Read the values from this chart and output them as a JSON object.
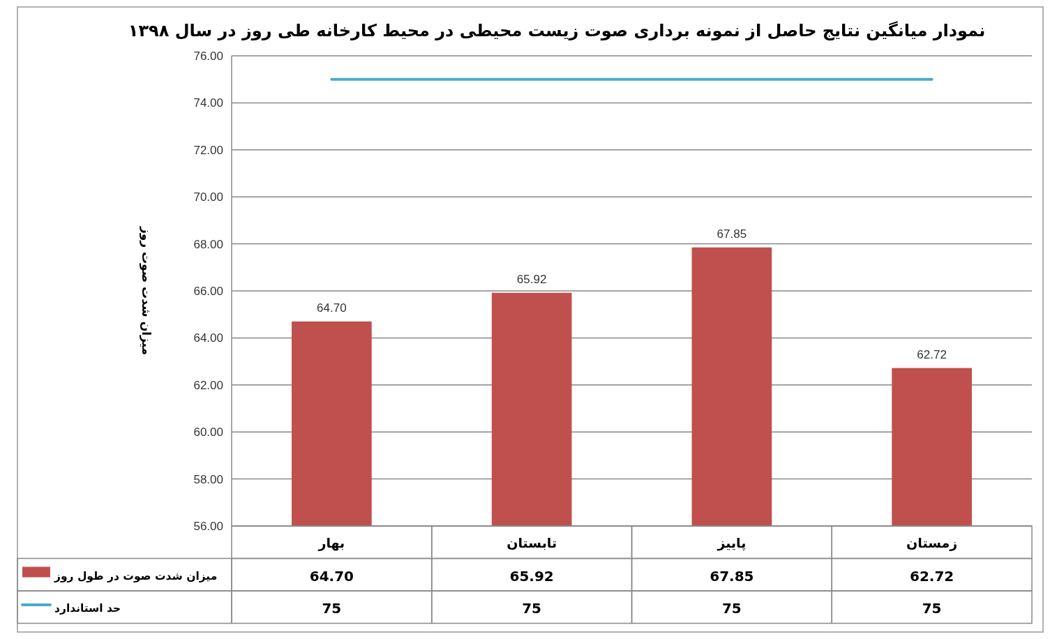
{
  "chart_data": {
    "type": "bar",
    "title": "نمودار میانگین نتایج حاصل از نمونه برداری صوت زیست محیطی در محیط کارخانه طی روز در سال ۱۳۹۸",
    "ylabel": "میزان شدت صوت روز",
    "categories": [
      "بهار",
      "تابستان",
      "پاییز",
      "زمستان"
    ],
    "series": [
      {
        "name": "میزان شدت صوت در طول روز",
        "color": "#c0504d",
        "values": [
          64.7,
          65.92,
          67.85,
          62.72
        ],
        "value_labels": [
          "64.70",
          "65.92",
          "67.85",
          "62.72"
        ]
      },
      {
        "name": "حد استاندارد",
        "type": "line",
        "color": "#4bacc6",
        "values": [
          75,
          75,
          75,
          75
        ],
        "value_labels": [
          "75",
          "75",
          "75",
          "75"
        ]
      }
    ],
    "ylim": [
      56,
      76
    ],
    "yticks": [
      {
        "value": 56,
        "label": "56.00"
      },
      {
        "value": 58,
        "label": "58.00"
      },
      {
        "value": 60,
        "label": "60.00"
      },
      {
        "value": 62,
        "label": "62.00"
      },
      {
        "value": 64,
        "label": "64.00"
      },
      {
        "value": 66,
        "label": "66.00"
      },
      {
        "value": 68,
        "label": "68.00"
      },
      {
        "value": 70,
        "label": "70.00"
      },
      {
        "value": 72,
        "label": "72.00"
      },
      {
        "value": 74,
        "label": "74.00"
      },
      {
        "value": 76,
        "label": "76.00"
      }
    ],
    "grid": "y",
    "legend": "bottom"
  }
}
